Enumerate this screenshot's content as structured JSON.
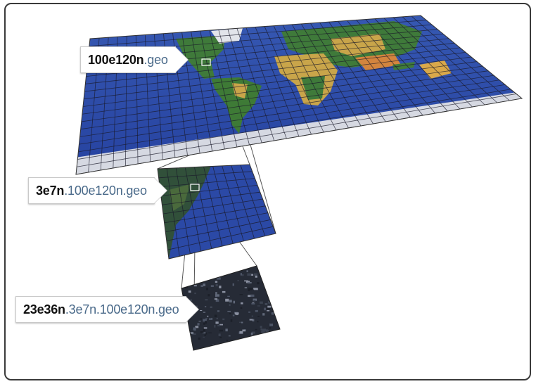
{
  "labels": {
    "level1": {
      "bold": "100e120n",
      "light": ".geo"
    },
    "level2": {
      "bold": "3e7n",
      "light": ".100e120n.geo"
    },
    "level3": {
      "bold": "23e36n",
      "light": ".3e7n.100e120n.geo"
    }
  },
  "colors": {
    "ocean": "#2d4fa6",
    "land_green": "#3f7a3a",
    "land_yellow": "#c9a54a",
    "ice": "#d8dbe3",
    "grid": "#1d1d2e",
    "satellite": "#2a2f3a"
  }
}
